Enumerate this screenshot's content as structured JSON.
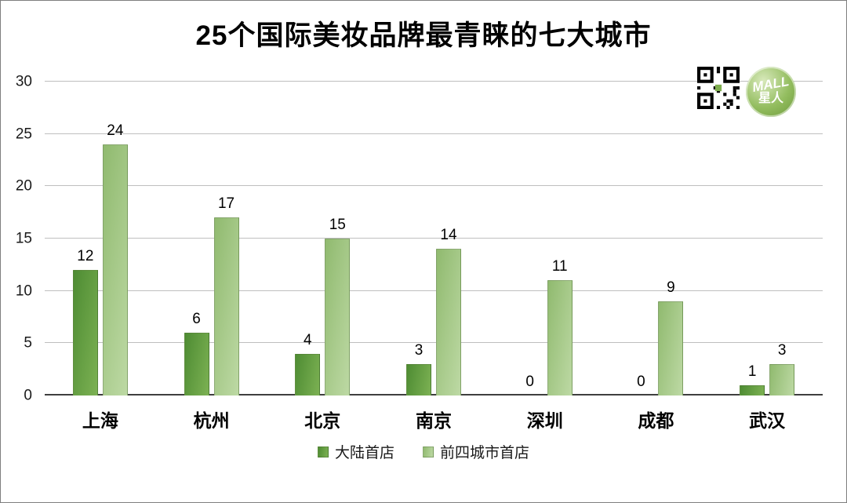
{
  "title": "25个国际美妆品牌最青睐的七大城市",
  "chart_data": {
    "type": "bar",
    "title": "25个国际美妆品牌最青睐的七大城市",
    "categories": [
      "上海",
      "杭州",
      "北京",
      "南京",
      "深圳",
      "成都",
      "武汉"
    ],
    "series": [
      {
        "name": "大陆首店",
        "values": [
          12,
          6,
          4,
          3,
          0,
          0,
          1
        ],
        "color_start": "#4e8c33",
        "color_end": "#7cb153"
      },
      {
        "name": "前四城市首店",
        "values": [
          24,
          17,
          15,
          14,
          11,
          9,
          3
        ],
        "color_start": "#90ba6f",
        "color_end": "#bdd9a4"
      }
    ],
    "xlabel": "",
    "ylabel": "",
    "ylim": [
      0,
      30
    ],
    "yticks": [
      0,
      5,
      10,
      15,
      20,
      25,
      30
    ],
    "grid": true,
    "legend_position": "bottom",
    "grid_color": "#bfbfbf",
    "axis_color": "#3f3f3f"
  },
  "branding": {
    "logo_line1": "MALL",
    "logo_line2": "星人"
  }
}
